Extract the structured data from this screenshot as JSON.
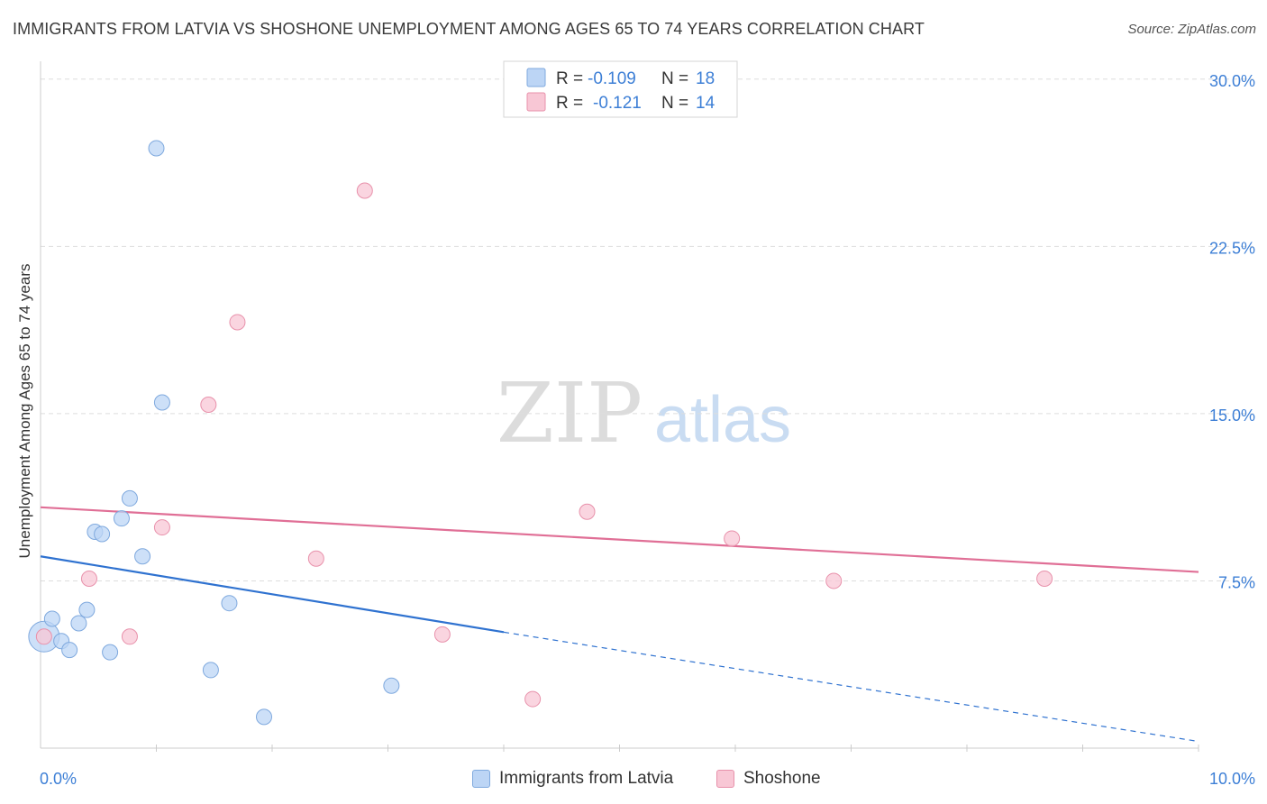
{
  "header": {
    "title": "IMMIGRANTS FROM LATVIA VS SHOSHONE UNEMPLOYMENT AMONG AGES 65 TO 74 YEARS CORRELATION CHART",
    "source": "Source: ZipAtlas.com"
  },
  "legend_top": {
    "rows": [
      {
        "r_label": "R =",
        "r_value": "-0.109",
        "n_label": "N =",
        "n_value": "18"
      },
      {
        "r_label": "R =",
        "r_value": "-0.121",
        "n_label": "N =",
        "n_value": "14"
      }
    ]
  },
  "watermark": {
    "zip": "ZIP",
    "atlas": "atlas"
  },
  "colors": {
    "blue_fill": "#bcd5f5",
    "blue_stroke": "#7fa9de",
    "blue_line": "#2f72d0",
    "pink_fill": "#f8c7d5",
    "pink_stroke": "#e891ab",
    "pink_line": "#e06f96",
    "axis_text": "#3d7fd6",
    "grid": "#dddddd"
  },
  "chart_data": {
    "type": "scatter",
    "title": "IMMIGRANTS FROM LATVIA VS SHOSHONE UNEMPLOYMENT AMONG AGES 65 TO 74 YEARS CORRELATION CHART",
    "xlabel": "",
    "ylabel": "Unemployment Among Ages 65 to 74 years",
    "xlim": [
      0,
      10
    ],
    "ylim": [
      0,
      30.8
    ],
    "x_tick_labels": [
      {
        "value": 0,
        "label": "0.0%"
      },
      {
        "value": 10,
        "label": "10.0%"
      }
    ],
    "y_tick_labels": [
      {
        "value": 7.5,
        "label": "7.5%"
      },
      {
        "value": 15,
        "label": "15.0%"
      },
      {
        "value": 22.5,
        "label": "22.5%"
      },
      {
        "value": 30,
        "label": "30.0%"
      }
    ],
    "grid": true,
    "legend_position": "top-center",
    "series": [
      {
        "name": "Immigrants from Latvia",
        "color": "blue",
        "points": [
          {
            "x": 0.03,
            "y": 5.0,
            "big": true
          },
          {
            "x": 0.1,
            "y": 5.8
          },
          {
            "x": 0.18,
            "y": 4.8
          },
          {
            "x": 0.25,
            "y": 4.4
          },
          {
            "x": 0.33,
            "y": 5.6
          },
          {
            "x": 0.4,
            "y": 6.2
          },
          {
            "x": 0.47,
            "y": 9.7
          },
          {
            "x": 0.53,
            "y": 9.6
          },
          {
            "x": 0.6,
            "y": 4.3
          },
          {
            "x": 0.7,
            "y": 10.3
          },
          {
            "x": 0.77,
            "y": 11.2
          },
          {
            "x": 0.88,
            "y": 8.6
          },
          {
            "x": 1.0,
            "y": 26.9
          },
          {
            "x": 1.05,
            "y": 15.5
          },
          {
            "x": 1.47,
            "y": 3.5
          },
          {
            "x": 1.63,
            "y": 6.5
          },
          {
            "x": 1.93,
            "y": 1.4
          },
          {
            "x": 3.03,
            "y": 2.8
          }
        ],
        "trend": {
          "x0": 0,
          "y0": 8.6,
          "x1": 4.0,
          "y1": 5.2,
          "dashed_to_x": 10.0,
          "dashed_to_y": 0.3
        }
      },
      {
        "name": "Shoshone",
        "color": "pink",
        "points": [
          {
            "x": 0.03,
            "y": 5.0
          },
          {
            "x": 0.42,
            "y": 7.6
          },
          {
            "x": 0.77,
            "y": 5.0
          },
          {
            "x": 1.05,
            "y": 9.9
          },
          {
            "x": 1.45,
            "y": 15.4
          },
          {
            "x": 1.7,
            "y": 19.1
          },
          {
            "x": 2.38,
            "y": 8.5
          },
          {
            "x": 2.8,
            "y": 25.0
          },
          {
            "x": 3.47,
            "y": 5.1
          },
          {
            "x": 4.25,
            "y": 2.2
          },
          {
            "x": 4.72,
            "y": 10.6
          },
          {
            "x": 5.97,
            "y": 9.4
          },
          {
            "x": 6.85,
            "y": 7.5
          },
          {
            "x": 8.67,
            "y": 7.6
          }
        ],
        "trend": {
          "x0": 0,
          "y0": 10.8,
          "x1": 10.0,
          "y1": 7.9
        }
      }
    ]
  },
  "legend_bottom": {
    "items": [
      {
        "label": "Immigrants from Latvia"
      },
      {
        "label": "Shoshone"
      }
    ]
  }
}
